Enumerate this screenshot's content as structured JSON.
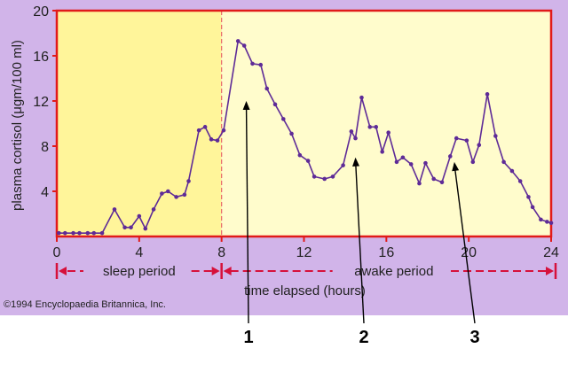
{
  "colors": {
    "band_background": "#d1b4e9",
    "sleep_region": "#fff59a",
    "awake_region": "#fffccc",
    "axis": "#e11a1a",
    "series": "#5e2b97",
    "period_arrow": "#d6113b",
    "callout": "#000000"
  },
  "copyright": "©1994 Encyclopaedia Britannica, Inc.",
  "periods": {
    "sleep": "sleep period",
    "awake": "awake period"
  },
  "callouts": [
    {
      "label": "1",
      "x": 9.2,
      "y": 12.0
    },
    {
      "label": "2",
      "x": 14.5,
      "y": 7.0
    },
    {
      "label": "3",
      "x": 19.3,
      "y": 6.6
    }
  ],
  "chart_data": {
    "type": "line",
    "title": "",
    "xlabel": "time elapsed (hours)",
    "ylabel": "plasma cortisol (μgm/100 ml)",
    "xlim": [
      0,
      24
    ],
    "ylim": [
      0,
      20
    ],
    "xticks": [
      0,
      4,
      8,
      12,
      16,
      20,
      24
    ],
    "yticks": [
      4,
      8,
      12,
      16,
      20
    ],
    "grid": false,
    "legend": "none",
    "sleep_period_end": 8,
    "series": [
      {
        "x": [
          0.1,
          0.4,
          0.8,
          1.1,
          1.5,
          1.8,
          2.2,
          2.8,
          3.3,
          3.6,
          4.0,
          4.3,
          4.7,
          5.1,
          5.4,
          5.8,
          6.2,
          6.4,
          6.9,
          7.2,
          7.5,
          7.8,
          8.1,
          8.8,
          9.1,
          9.5,
          9.9,
          10.2,
          10.6,
          11.0,
          11.4,
          11.8,
          12.2,
          12.5,
          13.0,
          13.4,
          13.9,
          14.3,
          14.5,
          14.8,
          15.2,
          15.5,
          15.8,
          16.1,
          16.5,
          16.8,
          17.2,
          17.6,
          17.9,
          18.3,
          18.7,
          19.1,
          19.4,
          19.9,
          20.2,
          20.5,
          20.9,
          21.3,
          21.7,
          22.1,
          22.5,
          22.9,
          23.1,
          23.5,
          23.8,
          24.0
        ],
        "y": [
          0.3,
          0.3,
          0.3,
          0.3,
          0.3,
          0.3,
          0.3,
          2.4,
          0.8,
          0.8,
          1.8,
          0.7,
          2.4,
          3.8,
          4.0,
          3.5,
          3.7,
          4.9,
          9.4,
          9.7,
          8.6,
          8.5,
          9.4,
          17.3,
          16.9,
          15.3,
          15.2,
          13.1,
          11.7,
          10.4,
          9.1,
          7.2,
          6.7,
          5.3,
          5.1,
          5.3,
          6.3,
          9.3,
          8.7,
          12.3,
          9.7,
          9.7,
          7.5,
          9.2,
          6.6,
          7.0,
          6.4,
          4.7,
          6.5,
          5.1,
          4.8,
          7.1,
          8.7,
          8.5,
          6.6,
          8.1,
          12.6,
          8.9,
          6.6,
          5.8,
          4.9,
          3.5,
          2.6,
          1.5,
          1.3,
          1.2
        ]
      }
    ]
  }
}
